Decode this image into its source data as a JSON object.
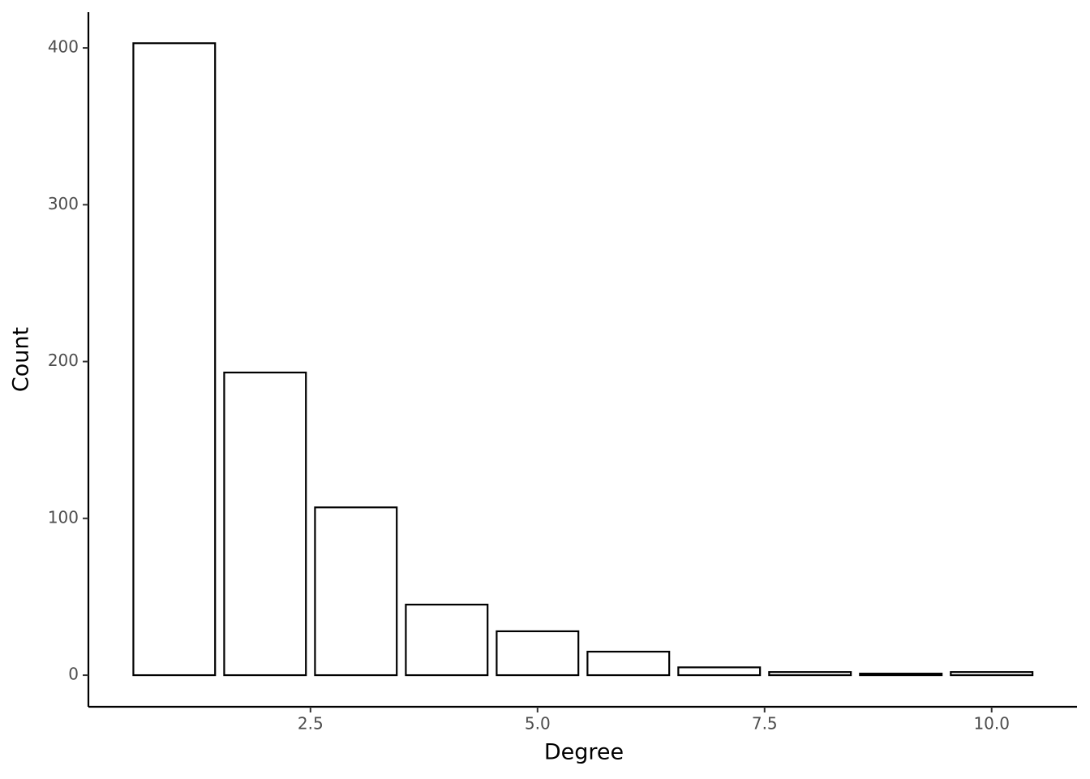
{
  "chart_data": {
    "type": "bar",
    "x_label": "Degree",
    "y_label": "Count",
    "x": [
      1,
      2,
      3,
      4,
      5,
      6,
      7,
      8,
      9,
      10
    ],
    "values": [
      403,
      193,
      107,
      45,
      28,
      15,
      5,
      2,
      1,
      2
    ],
    "color": "#ffffff",
    "edge_color": "#000000",
    "xlim": [
      0.055,
      10.94
    ],
    "xticks": [
      2.5,
      {
        "value": 5,
        "label": "5.0"
      },
      7.5,
      {
        "value": 10,
        "label": "10.0"
      }
    ],
    "ylim": [
      -20.15,
      422.8
    ],
    "yticks": [
      0,
      100,
      200,
      300,
      400
    ],
    "grid": false
  }
}
